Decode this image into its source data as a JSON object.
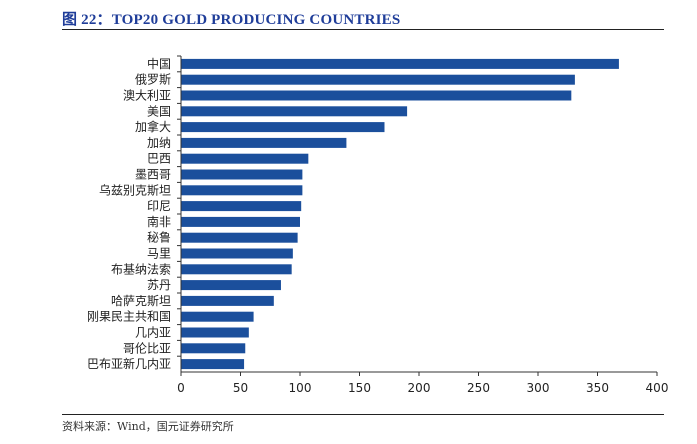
{
  "figure": {
    "title": "图 22：TOP20 GOLD PRODUCING COUNTRIES",
    "source": "资料来源：Wind，国元证券研究所"
  },
  "colors": {
    "bar": "#1b4f9c",
    "title": "#1f3d99"
  },
  "chart_data": {
    "type": "bar",
    "orientation": "horizontal",
    "categories": [
      "中国",
      "俄罗斯",
      "澳大利亚",
      "美国",
      "加拿大",
      "加纳",
      "巴西",
      "墨西哥",
      "乌兹别克斯坦",
      "印尼",
      "南非",
      "秘鲁",
      "马里",
      "布基纳法索",
      "苏丹",
      "哈萨克斯坦",
      "刚果民主共和国",
      "几内亚",
      "哥伦比亚",
      "巴布亚新几内亚"
    ],
    "values": [
      368,
      331,
      328,
      190,
      171,
      139,
      107,
      102,
      102,
      101,
      100,
      98,
      94,
      93,
      84,
      78,
      61,
      57,
      54,
      53
    ],
    "xlim": [
      0,
      400
    ],
    "xticks": [
      0,
      50,
      100,
      150,
      200,
      250,
      300,
      350,
      400
    ],
    "title": "",
    "xlabel": "",
    "ylabel": "",
    "grid": false,
    "legend": "none"
  }
}
